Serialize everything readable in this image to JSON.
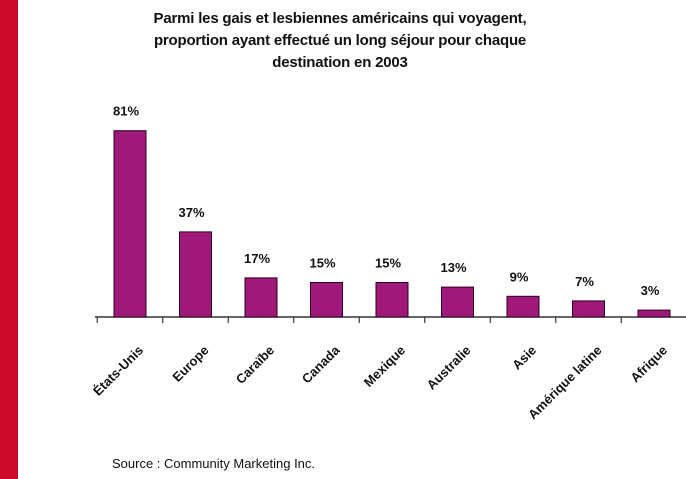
{
  "chart_data": {
    "type": "bar",
    "title_lines": [
      "Parmi les gais et lesbiennes américains qui voyagent,",
      "proportion ayant effectué un long séjour pour chaque",
      "destination en 2003"
    ],
    "categories": [
      "États-Unis",
      "Europe",
      "Caraïbe",
      "Canada",
      "Mexique",
      "Australie",
      "Asie",
      "Amérique latine",
      "Afrique"
    ],
    "values": [
      81,
      37,
      17,
      15,
      15,
      13,
      9,
      7,
      3
    ],
    "data_labels": [
      "81%",
      "37%",
      "17%",
      "15%",
      "15%",
      "13%",
      "9%",
      "7%",
      "3%"
    ],
    "ylim": [
      0,
      90
    ],
    "xlabel": "",
    "ylabel": "",
    "legend": "none",
    "grid": false
  },
  "source": "Source : Community Marketing Inc.",
  "colors": {
    "bar_fill": "#a0197a",
    "bar_stroke": "#2a0020",
    "accent": "#cc0a2c",
    "axis": "#333333",
    "text": "#111111"
  }
}
